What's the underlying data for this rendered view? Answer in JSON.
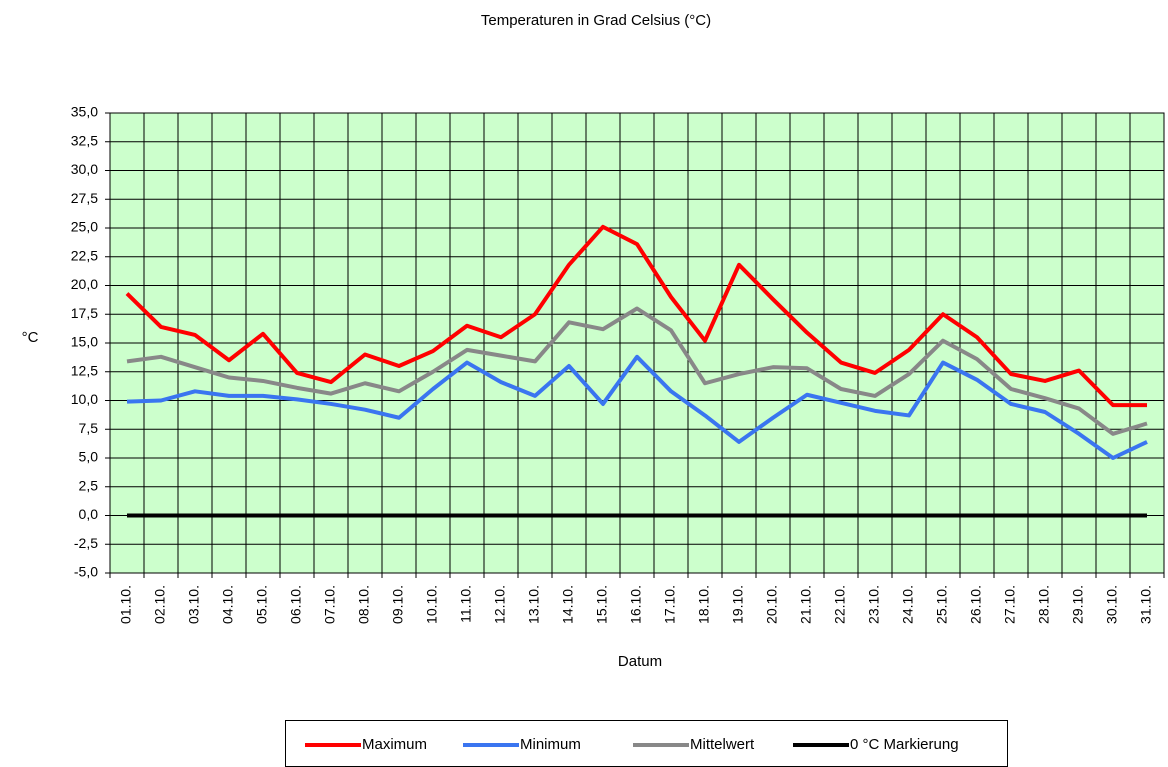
{
  "chart_data": {
    "type": "line",
    "title": "Temperaturen  in Grad Celsius (°C)",
    "y_label": "°C",
    "x_label": "Datum",
    "categories": [
      "01.10.",
      "02.10.",
      "03.10.",
      "04.10.",
      "05.10.",
      "06.10.",
      "07.10.",
      "08.10.",
      "09.10.",
      "10.10.",
      "11.10.",
      "12.10.",
      "13.10.",
      "14.10.",
      "15.10.",
      "16.10.",
      "17.10.",
      "18.10.",
      "19.10.",
      "20.10.",
      "21.10.",
      "22.10.",
      "23.10.",
      "24.10.",
      "25.10.",
      "26.10.",
      "27.10.",
      "28.10.",
      "29.10.",
      "30.10.",
      "31.10."
    ],
    "series": [
      {
        "name": "Maximum",
        "color": "#ff0000",
        "values": [
          19.3,
          16.4,
          15.7,
          13.5,
          15.8,
          12.4,
          11.6,
          14.0,
          13.0,
          14.3,
          16.5,
          15.5,
          17.5,
          21.8,
          25.1,
          23.6,
          19.0,
          15.2,
          21.8,
          18.8,
          15.9,
          13.3,
          12.4,
          14.4,
          17.5,
          15.5,
          12.3,
          11.7,
          12.6,
          9.6,
          9.6
        ]
      },
      {
        "name": "Minimum",
        "color": "#3a75f0",
        "values": [
          9.9,
          10.0,
          10.8,
          10.4,
          10.4,
          10.1,
          9.7,
          9.2,
          8.5,
          11.0,
          13.3,
          11.6,
          10.4,
          13.0,
          9.7,
          13.8,
          10.8,
          8.7,
          6.4,
          8.5,
          10.5,
          9.8,
          9.1,
          8.7,
          13.3,
          11.8,
          9.7,
          9.0,
          7.1,
          5.0,
          6.4
        ]
      },
      {
        "name": "Mittelwert",
        "color": "#888888",
        "values": [
          13.4,
          13.8,
          12.9,
          12.0,
          11.7,
          11.1,
          10.6,
          11.5,
          10.8,
          12.5,
          14.4,
          13.9,
          13.4,
          16.8,
          16.2,
          18.0,
          16.1,
          11.5,
          12.3,
          12.9,
          12.8,
          11.0,
          10.4,
          12.3,
          15.2,
          13.6,
          11.0,
          10.2,
          9.3,
          7.1,
          8.0
        ]
      },
      {
        "name": "0 °C Markierung",
        "color": "#000000",
        "values": [
          0,
          0,
          0,
          0,
          0,
          0,
          0,
          0,
          0,
          0,
          0,
          0,
          0,
          0,
          0,
          0,
          0,
          0,
          0,
          0,
          0,
          0,
          0,
          0,
          0,
          0,
          0,
          0,
          0,
          0,
          0
        ]
      }
    ],
    "ylim": [
      -5,
      35
    ],
    "yticks": [
      {
        "value": -5,
        "label": "-5,0"
      },
      {
        "value": -2.5,
        "label": "-2,5"
      },
      {
        "value": 0,
        "label": "0,0"
      },
      {
        "value": 2.5,
        "label": "2,5"
      },
      {
        "value": 5,
        "label": "5,0"
      },
      {
        "value": 7.5,
        "label": "7,5"
      },
      {
        "value": 10,
        "label": "10,0"
      },
      {
        "value": 12.5,
        "label": "12,5"
      },
      {
        "value": 15,
        "label": "15,0"
      },
      {
        "value": 17.5,
        "label": "17,5"
      },
      {
        "value": 20,
        "label": "20,0"
      },
      {
        "value": 22.5,
        "label": "22,5"
      },
      {
        "value": 25,
        "label": "25,0"
      },
      {
        "value": 27.5,
        "label": "27,5"
      },
      {
        "value": 30,
        "label": "30,0"
      },
      {
        "value": 32.5,
        "label": "32,5"
      },
      {
        "value": 35,
        "label": "35,0"
      }
    ],
    "grid": true,
    "background": "#ccffcc",
    "legend": "bottom"
  }
}
